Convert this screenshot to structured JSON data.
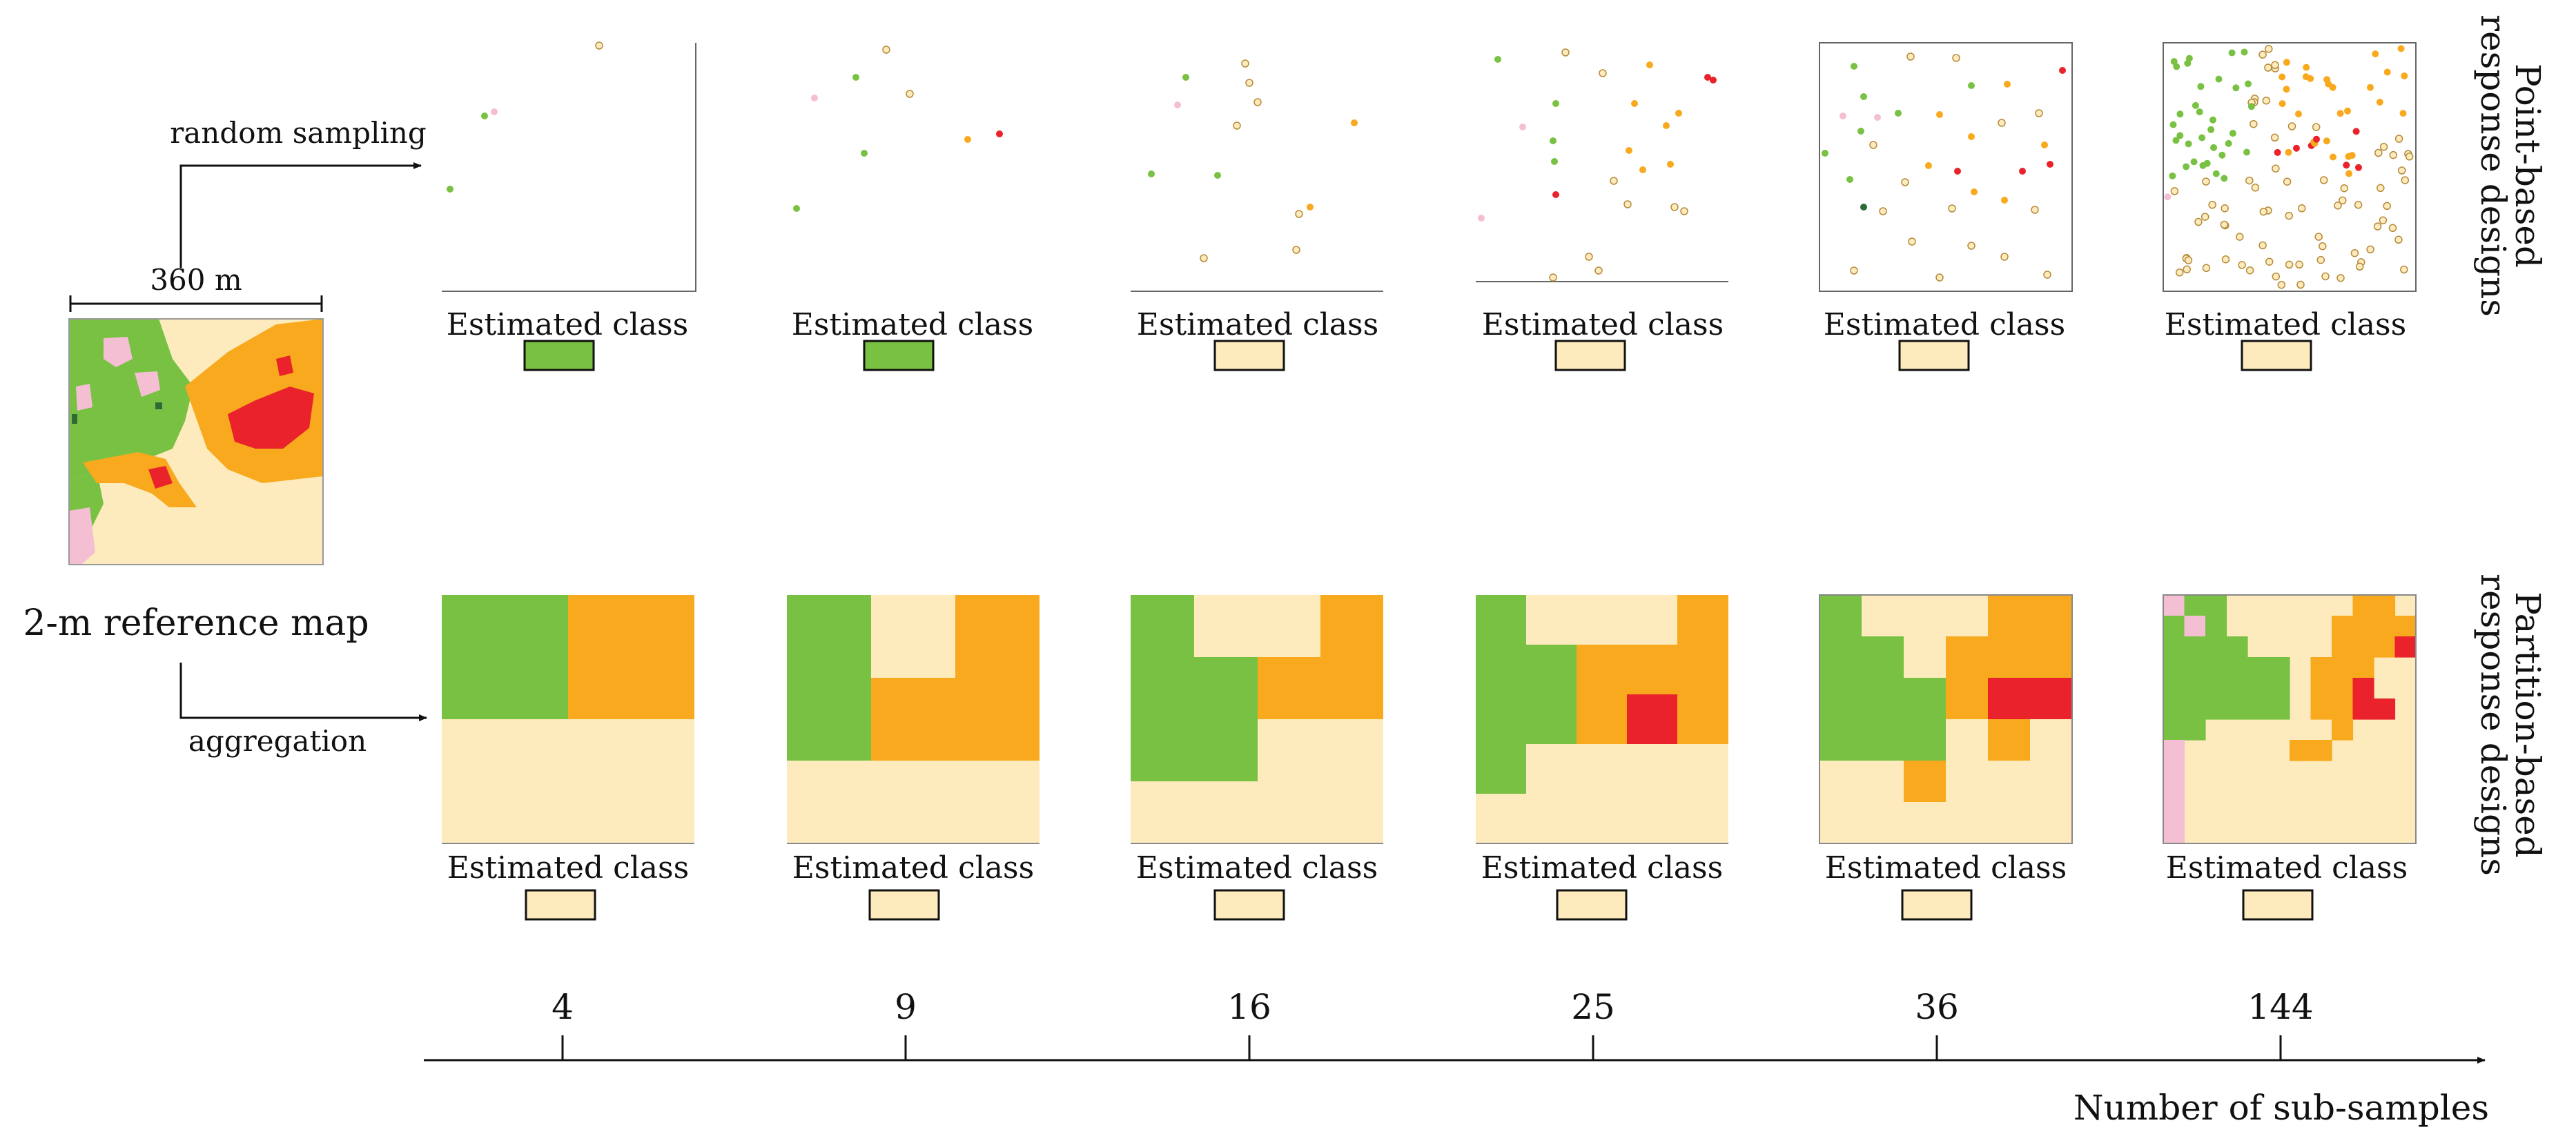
{
  "reference": {
    "scale_label": "360 m",
    "map_label": "2-m reference map",
    "arrow_top_label": "random sampling",
    "arrow_bottom_label": "aggregation"
  },
  "side_labels": {
    "point_line1": "Point-based",
    "point_line2": "response designs",
    "partition_line1": "Partition-based",
    "partition_line2": "response designs"
  },
  "estimated_label": "Estimated class",
  "axis": {
    "title": "Number of sub-samples",
    "ticks": [
      "4",
      "9",
      "16",
      "25",
      "36",
      "144"
    ]
  },
  "colors": {
    "green": "#79c143",
    "orange": "#f8a91d",
    "cream": "#fdebbd",
    "red": "#e9222b",
    "pink": "#f4bfd3",
    "darkgreen": "#2d6a36"
  },
  "point_designs": [
    {
      "n": 4,
      "estimated": "green"
    },
    {
      "n": 9,
      "estimated": "green"
    },
    {
      "n": 16,
      "estimated": "cream"
    },
    {
      "n": 25,
      "estimated": "cream"
    },
    {
      "n": 36,
      "estimated": "cream"
    },
    {
      "n": 144,
      "estimated": "cream"
    }
  ],
  "partition_designs": [
    {
      "n": 4,
      "estimated": "cream"
    },
    {
      "n": 9,
      "estimated": "cream"
    },
    {
      "n": 16,
      "estimated": "cream"
    },
    {
      "n": 25,
      "estimated": "cream"
    },
    {
      "n": 36,
      "estimated": "cream"
    },
    {
      "n": 144,
      "estimated": "cream"
    }
  ]
}
